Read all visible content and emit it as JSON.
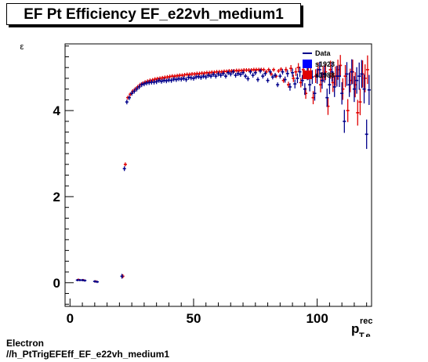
{
  "title": "EF Pt Efficiency EF_e22vh_medium1",
  "footer": {
    "line1": "Electron",
    "line2": "//h_PtTrigEFEff_EF_e22vh_medium1"
  },
  "colors": {
    "data": "#00008b",
    "mc": "#e00000",
    "mc_legend": "#0000ff"
  },
  "chart_data": {
    "type": "scatter",
    "title": "EF Pt Efficiency EF_e22vh_medium1",
    "xlabel": "p_{T,e}^{rec}",
    "xlabel_main": "p",
    "xlabel_sup": "rec",
    "xlabel_sub": "T,e",
    "ylabel": "ε",
    "xlim": [
      -2,
      122
    ],
    "ylim": [
      -0.55,
      5.55
    ],
    "xticks": [
      "0",
      "50",
      "100"
    ],
    "yticks": [
      "0",
      "2",
      "4"
    ],
    "legend": {
      "position": "top-right",
      "entries": [
        "Data",
        "s1923",
        "s1988"
      ]
    },
    "series": [
      {
        "name": "Data",
        "x": [
          3,
          4,
          5,
          6,
          10,
          11,
          21,
          22,
          23,
          24,
          25,
          26,
          27,
          28,
          29,
          30,
          31,
          32,
          33,
          34,
          35,
          36,
          37,
          38,
          39,
          40,
          41,
          42,
          43,
          44,
          45,
          46,
          47,
          48,
          49,
          50,
          51,
          52,
          53,
          54,
          55,
          56,
          57,
          58,
          59,
          60,
          61,
          62,
          63,
          64,
          65,
          66,
          67,
          68,
          69,
          70,
          71,
          72,
          73,
          74,
          75,
          76,
          77,
          78,
          79,
          80,
          81,
          82,
          83,
          84,
          85,
          86,
          87,
          88,
          89,
          90,
          91,
          92,
          93,
          94,
          95,
          96,
          97,
          98,
          99,
          100,
          101,
          102,
          103,
          104,
          105,
          106,
          107,
          108,
          109,
          110,
          111,
          112,
          113,
          114,
          115,
          116,
          117,
          118,
          119,
          120,
          121
        ],
        "y": [
          0.06,
          0.06,
          0.06,
          0.05,
          0.03,
          0.02,
          0.15,
          2.65,
          4.2,
          4.3,
          4.4,
          4.45,
          4.5,
          4.55,
          4.6,
          4.62,
          4.64,
          4.65,
          4.66,
          4.66,
          4.67,
          4.7,
          4.68,
          4.7,
          4.69,
          4.71,
          4.7,
          4.73,
          4.72,
          4.74,
          4.73,
          4.75,
          4.72,
          4.77,
          4.76,
          4.75,
          4.78,
          4.79,
          4.77,
          4.8,
          4.78,
          4.82,
          4.8,
          4.84,
          4.8,
          4.85,
          4.82,
          4.86,
          4.8,
          4.88,
          4.85,
          4.9,
          4.82,
          4.86,
          4.84,
          4.88,
          4.8,
          4.74,
          4.9,
          4.82,
          4.88,
          4.72,
          4.92,
          4.8,
          4.86,
          4.7,
          4.9,
          4.78,
          4.82,
          4.6,
          4.8,
          4.9,
          4.72,
          4.86,
          4.55,
          4.88,
          4.62,
          4.75,
          4.9,
          4.7,
          4.5,
          4.85,
          4.6,
          4.78,
          4.4,
          4.8,
          4.95,
          4.7,
          4.85,
          4.3,
          4.6,
          4.9,
          4.55,
          4.8,
          4.8,
          4.4,
          3.75,
          4.85,
          4.6,
          4.9,
          4.5,
          4.7,
          4.8,
          4.85,
          4.5,
          3.45,
          4.48
        ]
      },
      {
        "name": "s1923",
        "x": [
          3,
          5,
          10,
          21,
          22,
          23,
          24,
          25,
          26,
          27,
          28,
          29,
          30,
          31,
          32,
          33,
          34,
          35,
          36,
          37,
          38,
          39,
          40,
          41,
          42,
          43,
          44,
          45,
          46,
          47,
          48,
          49,
          50,
          51,
          52,
          53,
          54,
          55,
          56,
          57,
          58,
          59,
          60,
          61,
          62,
          63,
          64,
          65,
          66,
          67,
          68,
          69,
          70,
          71,
          72,
          73,
          74,
          75,
          76,
          77,
          78,
          79,
          80,
          81,
          82,
          83,
          84,
          85,
          86,
          87,
          88,
          89,
          90,
          91,
          92,
          93,
          94,
          95,
          96,
          97,
          98,
          99,
          100,
          101,
          102,
          103,
          104,
          105,
          106,
          107,
          108,
          109,
          110,
          111,
          112,
          113,
          114,
          115,
          116,
          117,
          118,
          119,
          120
        ],
        "y": [
          0.07,
          0.06,
          0.03,
          0.15,
          2.75,
          4.3,
          4.38,
          4.45,
          4.5,
          4.55,
          4.6,
          4.63,
          4.66,
          4.68,
          4.7,
          4.71,
          4.73,
          4.74,
          4.75,
          4.76,
          4.77,
          4.78,
          4.79,
          4.8,
          4.8,
          4.81,
          4.82,
          4.82,
          4.83,
          4.84,
          4.84,
          4.85,
          4.85,
          4.86,
          4.86,
          4.87,
          4.87,
          4.88,
          4.88,
          4.89,
          4.89,
          4.9,
          4.9,
          4.9,
          4.91,
          4.91,
          4.92,
          4.92,
          4.92,
          4.93,
          4.93,
          4.93,
          4.94,
          4.94,
          4.94,
          4.94,
          4.95,
          4.95,
          4.95,
          4.95,
          4.95,
          4.9,
          4.95,
          4.85,
          4.95,
          4.8,
          4.92,
          4.96,
          4.7,
          4.95,
          4.6,
          4.98,
          4.75,
          4.9,
          5.0,
          4.65,
          4.95,
          4.4,
          4.85,
          4.9,
          4.3,
          4.8,
          4.95,
          4.6,
          4.85,
          4.9,
          4.1,
          4.95,
          4.65,
          4.8,
          4.95,
          5.05,
          4.5,
          4.8,
          4.0,
          4.7,
          4.9,
          4.6,
          3.95,
          4.2,
          4.85,
          4.75,
          4.95
        ]
      },
      {
        "name": "s1988",
        "x": [],
        "y": []
      }
    ]
  }
}
